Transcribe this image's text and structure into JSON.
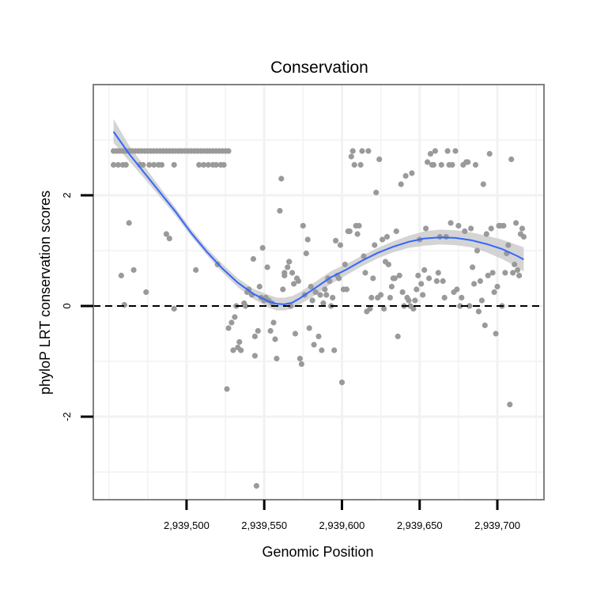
{
  "chart_data": {
    "type": "scatter",
    "title": "Conservation",
    "xlabel": "Genomic Position",
    "ylabel": "phyloP LRT conservation scores",
    "xlim": [
      2939440,
      2939730
    ],
    "ylim": [
      -3.5,
      4.0
    ],
    "x_ticks": [
      2939500,
      2939550,
      2939600,
      2939650,
      2939700
    ],
    "x_tick_labels": [
      "2,939,500",
      "2,939,550",
      "2,939,600",
      "2,939,650",
      "2,939,700"
    ],
    "y_ticks": [
      -2,
      0,
      2
    ],
    "y_tick_labels": [
      "-2",
      "0",
      "2"
    ],
    "reference_line": {
      "y": 0,
      "style": "dashed",
      "color": "#000000"
    },
    "grid": true,
    "colors": {
      "points": "#9a9a9a",
      "smooth": "#3366ff",
      "ribbon": "#cccccc",
      "panel_border": "#808080",
      "grid": "#f2f2f2"
    },
    "series": [
      {
        "name": "scores",
        "points": [
          [
            2939453,
            2.8
          ],
          [
            2939455,
            2.8
          ],
          [
            2939457,
            2.8
          ],
          [
            2939459,
            2.8
          ],
          [
            2939461,
            2.8
          ],
          [
            2939463,
            2.8
          ],
          [
            2939465,
            2.8
          ],
          [
            2939467,
            2.8
          ],
          [
            2939469,
            2.8
          ],
          [
            2939471,
            2.8
          ],
          [
            2939473,
            2.8
          ],
          [
            2939475,
            2.8
          ],
          [
            2939477,
            2.8
          ],
          [
            2939479,
            2.8
          ],
          [
            2939481,
            2.8
          ],
          [
            2939483,
            2.8
          ],
          [
            2939485,
            2.8
          ],
          [
            2939487,
            2.8
          ],
          [
            2939489,
            2.8
          ],
          [
            2939491,
            2.8
          ],
          [
            2939493,
            2.8
          ],
          [
            2939495,
            2.8
          ],
          [
            2939497,
            2.8
          ],
          [
            2939499,
            2.8
          ],
          [
            2939501,
            2.8
          ],
          [
            2939503,
            2.8
          ],
          [
            2939505,
            2.8
          ],
          [
            2939507,
            2.8
          ],
          [
            2939509,
            2.8
          ],
          [
            2939511,
            2.8
          ],
          [
            2939513,
            2.8
          ],
          [
            2939515,
            2.8
          ],
          [
            2939517,
            2.8
          ],
          [
            2939519,
            2.8
          ],
          [
            2939521,
            2.8
          ],
          [
            2939523,
            2.8
          ],
          [
            2939525,
            2.8
          ],
          [
            2939527,
            2.8
          ],
          [
            2939453,
            2.55
          ],
          [
            2939456,
            2.55
          ],
          [
            2939459,
            2.55
          ],
          [
            2939461,
            2.55
          ],
          [
            2939470,
            2.55
          ],
          [
            2939472,
            2.55
          ],
          [
            2939476,
            2.55
          ],
          [
            2939479,
            2.55
          ],
          [
            2939482,
            2.55
          ],
          [
            2939484,
            2.55
          ],
          [
            2939492,
            2.55
          ],
          [
            2939508,
            2.55
          ],
          [
            2939511,
            2.55
          ],
          [
            2939514,
            2.55
          ],
          [
            2939517,
            2.55
          ],
          [
            2939519,
            2.55
          ],
          [
            2939522,
            2.55
          ],
          [
            2939524,
            2.55
          ],
          [
            2939458,
            0.55
          ],
          [
            2939460,
            0.02
          ],
          [
            2939463,
            1.5
          ],
          [
            2939466,
            0.65
          ],
          [
            2939474,
            0.25
          ],
          [
            2939487,
            1.3
          ],
          [
            2939489,
            1.22
          ],
          [
            2939492,
            -0.05
          ],
          [
            2939506,
            0.65
          ],
          [
            2939520,
            0.75
          ],
          [
            2939526,
            -1.5
          ],
          [
            2939527,
            -0.4
          ],
          [
            2939529,
            -0.3
          ],
          [
            2939530,
            -0.8
          ],
          [
            2939531,
            -0.2
          ],
          [
            2939532,
            0.0
          ],
          [
            2939533,
            -0.75
          ],
          [
            2939534,
            -0.65
          ],
          [
            2939535,
            -0.8
          ],
          [
            2939537,
            0.05
          ],
          [
            2939538,
            0.0
          ],
          [
            2939539,
            0.25
          ],
          [
            2939540,
            0.3
          ],
          [
            2939542,
            0.2
          ],
          [
            2939543,
            0.85
          ],
          [
            2939544,
            -0.55
          ],
          [
            2939544,
            -0.9
          ],
          [
            2939545,
            -3.25
          ],
          [
            2939546,
            -0.45
          ],
          [
            2939547,
            0.35
          ],
          [
            2939548,
            0.15
          ],
          [
            2939549,
            1.05
          ],
          [
            2939550,
            0.1
          ],
          [
            2939551,
            0.15
          ],
          [
            2939552,
            0.7
          ],
          [
            2939553,
            0.1
          ],
          [
            2939554,
            -0.45
          ],
          [
            2939555,
            0.05
          ],
          [
            2939556,
            -0.3
          ],
          [
            2939557,
            -0.6
          ],
          [
            2939558,
            -0.95
          ],
          [
            2939560,
            1.72
          ],
          [
            2939561,
            2.3
          ],
          [
            2939562,
            0.3
          ],
          [
            2939563,
            0.55
          ],
          [
            2939563,
            0.6
          ],
          [
            2939565,
            0.7
          ],
          [
            2939566,
            0.8
          ],
          [
            2939566,
            0.8
          ],
          [
            2939567,
            0.0
          ],
          [
            2939568,
            0.6
          ],
          [
            2939569,
            0.4
          ],
          [
            2939570,
            -0.5
          ],
          [
            2939571,
            0.5
          ],
          [
            2939572,
            0.45
          ],
          [
            2939573,
            -0.95
          ],
          [
            2939574,
            -1.05
          ],
          [
            2939575,
            1.45
          ],
          [
            2939576,
            0.2
          ],
          [
            2939577,
            0.95
          ],
          [
            2939578,
            1.2
          ],
          [
            2939579,
            -0.4
          ],
          [
            2939580,
            0.35
          ],
          [
            2939581,
            0.1
          ],
          [
            2939582,
            -0.7
          ],
          [
            2939583,
            0.25
          ],
          [
            2939585,
            -0.55
          ],
          [
            2939586,
            0.2
          ],
          [
            2939587,
            -0.8
          ],
          [
            2939588,
            0.05
          ],
          [
            2939589,
            0.3
          ],
          [
            2939590,
            0.2
          ],
          [
            2939591,
            0.5
          ],
          [
            2939592,
            0.45
          ],
          [
            2939593,
            0.0
          ],
          [
            2939594,
            0.15
          ],
          [
            2939595,
            -0.8
          ],
          [
            2939596,
            1.18
          ],
          [
            2939597,
            0.55
          ],
          [
            2939598,
            0.5
          ],
          [
            2939599,
            1.1
          ],
          [
            2939600,
            -1.38
          ],
          [
            2939601,
            0.3
          ],
          [
            2939602,
            0.75
          ],
          [
            2939603,
            0.3
          ],
          [
            2939604,
            1.35
          ],
          [
            2939605,
            1.35
          ],
          [
            2939606,
            2.7
          ],
          [
            2939607,
            2.8
          ],
          [
            2939608,
            2.55
          ],
          [
            2939609,
            1.45
          ],
          [
            2939610,
            1.3
          ],
          [
            2939611,
            1.45
          ],
          [
            2939612,
            2.55
          ],
          [
            2939613,
            2.8
          ],
          [
            2939614,
            0.9
          ],
          [
            2939615,
            0.6
          ],
          [
            2939616,
            -0.1
          ],
          [
            2939617,
            2.8
          ],
          [
            2939618,
            -0.05
          ],
          [
            2939619,
            0.15
          ],
          [
            2939620,
            0.5
          ],
          [
            2939621,
            1.1
          ],
          [
            2939622,
            2.05
          ],
          [
            2939623,
            0.15
          ],
          [
            2939624,
            2.65
          ],
          [
            2939625,
            0.2
          ],
          [
            2939626,
            1.2
          ],
          [
            2939627,
            -0.05
          ],
          [
            2939628,
            0.8
          ],
          [
            2939629,
            1.25
          ],
          [
            2939630,
            0.75
          ],
          [
            2939631,
            0.15
          ],
          [
            2939632,
            0.35
          ],
          [
            2939633,
            0.5
          ],
          [
            2939634,
            0.5
          ],
          [
            2939635,
            1.35
          ],
          [
            2939636,
            -0.55
          ],
          [
            2939637,
            0.55
          ],
          [
            2939638,
            2.2
          ],
          [
            2939639,
            0.25
          ],
          [
            2939640,
            0.0
          ],
          [
            2939641,
            2.35
          ],
          [
            2939642,
            0.15
          ],
          [
            2939643,
            0.1
          ],
          [
            2939644,
            0.0
          ],
          [
            2939645,
            2.4
          ],
          [
            2939646,
            -0.05
          ],
          [
            2939647,
            0.1
          ],
          [
            2939648,
            0.3
          ],
          [
            2939649,
            0.55
          ],
          [
            2939650,
            1.2
          ],
          [
            2939651,
            0.4
          ],
          [
            2939652,
            0.2
          ],
          [
            2939653,
            0.65
          ],
          [
            2939654,
            1.4
          ],
          [
            2939655,
            2.6
          ],
          [
            2939656,
            0.5
          ],
          [
            2939657,
            2.75
          ],
          [
            2939658,
            2.55
          ],
          [
            2939659,
            2.55
          ],
          [
            2939660,
            2.8
          ],
          [
            2939661,
            0.45
          ],
          [
            2939662,
            0.6
          ],
          [
            2939663,
            1.25
          ],
          [
            2939664,
            2.55
          ],
          [
            2939665,
            0.45
          ],
          [
            2939666,
            0.15
          ],
          [
            2939667,
            1.25
          ],
          [
            2939668,
            2.8
          ],
          [
            2939669,
            2.55
          ],
          [
            2939670,
            1.5
          ],
          [
            2939671,
            2.55
          ],
          [
            2939672,
            0.25
          ],
          [
            2939673,
            2.8
          ],
          [
            2939674,
            0.3
          ],
          [
            2939675,
            1.45
          ],
          [
            2939676,
            0.0
          ],
          [
            2939677,
            0.15
          ],
          [
            2939678,
            2.55
          ],
          [
            2939679,
            1.35
          ],
          [
            2939680,
            2.6
          ],
          [
            2939681,
            2.6
          ],
          [
            2939682,
            0.0
          ],
          [
            2939683,
            1.4
          ],
          [
            2939684,
            0.7
          ],
          [
            2939685,
            0.4
          ],
          [
            2939686,
            2.55
          ],
          [
            2939687,
            1.0
          ],
          [
            2939688,
            -0.1
          ],
          [
            2939689,
            0.45
          ],
          [
            2939690,
            0.1
          ],
          [
            2939691,
            2.2
          ],
          [
            2939692,
            -0.35
          ],
          [
            2939693,
            1.3
          ],
          [
            2939694,
            0.55
          ],
          [
            2939695,
            2.75
          ],
          [
            2939696,
            1.4
          ],
          [
            2939697,
            0.6
          ],
          [
            2939698,
            0.25
          ],
          [
            2939699,
            -0.5
          ],
          [
            2939700,
            0.35
          ],
          [
            2939701,
            1.45
          ],
          [
            2939702,
            1.45
          ],
          [
            2939703,
            0.0
          ],
          [
            2939704,
            1.45
          ],
          [
            2939705,
            0.6
          ],
          [
            2939706,
            0.95
          ],
          [
            2939707,
            1.1
          ],
          [
            2939708,
            -1.78
          ],
          [
            2939709,
            2.65
          ],
          [
            2939710,
            0.6
          ],
          [
            2939711,
            0.75
          ],
          [
            2939712,
            1.5
          ],
          [
            2939713,
            0.65
          ],
          [
            2939714,
            0.55
          ],
          [
            2939715,
            1.3
          ],
          [
            2939716,
            1.4
          ],
          [
            2939717,
            1.25
          ]
        ]
      }
    ],
    "smooth_fit": {
      "name": "loess",
      "x": [
        2939453,
        2939463,
        2939473,
        2939483,
        2939493,
        2939503,
        2939513,
        2939523,
        2939533,
        2939543,
        2939553,
        2939558,
        2939563,
        2939568,
        2939573,
        2939583,
        2939593,
        2939603,
        2939613,
        2939623,
        2939633,
        2939643,
        2939653,
        2939663,
        2939673,
        2939683,
        2939693,
        2939703,
        2939713,
        2939717
      ],
      "y": [
        3.15,
        2.75,
        2.4,
        2.05,
        1.7,
        1.32,
        0.98,
        0.68,
        0.42,
        0.22,
        0.08,
        0.04,
        0.03,
        0.06,
        0.14,
        0.33,
        0.52,
        0.66,
        0.82,
        0.96,
        1.07,
        1.16,
        1.22,
        1.24,
        1.23,
        1.19,
        1.12,
        1.03,
        0.9,
        0.84
      ],
      "lower": [
        2.95,
        2.62,
        2.3,
        1.97,
        1.63,
        1.26,
        0.92,
        0.61,
        0.34,
        0.13,
        -0.03,
        -0.08,
        -0.08,
        -0.05,
        0.03,
        0.2,
        0.4,
        0.56,
        0.72,
        0.86,
        0.97,
        1.05,
        1.09,
        1.11,
        1.1,
        1.06,
        0.97,
        0.85,
        0.7,
        0.62
      ],
      "upper": [
        3.38,
        2.9,
        2.52,
        2.14,
        1.77,
        1.39,
        1.05,
        0.76,
        0.5,
        0.31,
        0.2,
        0.15,
        0.15,
        0.18,
        0.25,
        0.44,
        0.63,
        0.76,
        0.91,
        1.05,
        1.17,
        1.27,
        1.35,
        1.38,
        1.37,
        1.33,
        1.27,
        1.2,
        1.1,
        1.06
      ]
    }
  }
}
